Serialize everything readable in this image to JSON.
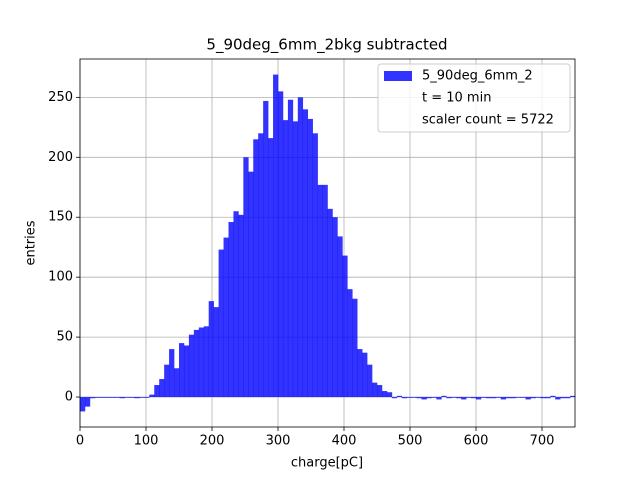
{
  "chart_data": {
    "type": "histogram",
    "title": "5_90deg_6mm_2bkg subtracted",
    "x_label": "charge[pC]",
    "y_label": "entries",
    "bins": [
      0,
      7.5,
      15,
      22.5,
      30,
      37.5,
      45,
      52.5,
      60,
      67.5,
      75,
      82.5,
      90,
      97.5,
      105,
      112.5,
      120,
      127.5,
      135,
      142.5,
      150,
      157.5,
      165,
      172.5,
      180,
      187.5,
      195,
      202.5,
      210,
      217.5,
      225,
      232.5,
      240,
      247.5,
      255,
      262.5,
      270,
      277.5,
      285,
      292.5,
      300,
      307.5,
      315,
      322.5,
      330,
      337.5,
      345,
      352.5,
      360,
      367.5,
      375,
      382.5,
      390,
      397.5,
      405,
      412.5,
      420,
      427.5,
      435,
      442.5,
      450,
      457.5,
      465,
      472.5,
      480,
      487.5,
      495,
      502.5,
      510,
      517.5,
      525,
      532.5,
      540,
      547.5,
      555,
      562.5,
      570,
      577.5,
      585,
      592.5,
      600,
      607.5,
      615,
      622.5,
      630,
      637.5,
      645,
      652.5,
      660,
      667.5,
      675,
      682.5,
      690,
      697.5,
      705,
      712.5,
      720,
      727.5,
      735,
      742.5,
      750
    ],
    "series": [
      {
        "name": "5_90deg_6mm_2",
        "color": "#0000ff",
        "opacity": 0.8,
        "values": [
          -12,
          -8,
          -1,
          0,
          0,
          0,
          0,
          0,
          -1,
          0,
          0,
          -1,
          0,
          0,
          2,
          10,
          15,
          27,
          40,
          24,
          45,
          43,
          52,
          56,
          58,
          59,
          80,
          75,
          123,
          133,
          146,
          155,
          152,
          200,
          188,
          215,
          220,
          247,
          216,
          269,
          255,
          231,
          248,
          230,
          250,
          240,
          232,
          220,
          177,
          177,
          157,
          150,
          134,
          118,
          90,
          82,
          40,
          37,
          27,
          12,
          10,
          5,
          4,
          -1,
          1,
          -1,
          0,
          0,
          -1,
          -2,
          -1,
          0,
          -2,
          1,
          -1,
          0,
          -1,
          -2,
          0,
          -1,
          -2,
          0,
          -1,
          -1,
          0,
          -2,
          -1,
          -1,
          0,
          0,
          -2,
          -1,
          0,
          -1,
          -1,
          1,
          -2,
          -1,
          -1,
          1
        ]
      }
    ],
    "legend_texts": [
      "t = 10 min",
      "scaler count = 5722"
    ],
    "legend_loc": "upper right",
    "xlim": [
      0,
      750
    ],
    "xticks": [
      0,
      100,
      200,
      300,
      400,
      500,
      600,
      700
    ],
    "ylim": [
      -25,
      282
    ],
    "yticks": [
      0,
      50,
      100,
      150,
      200,
      250
    ],
    "grid": true
  }
}
